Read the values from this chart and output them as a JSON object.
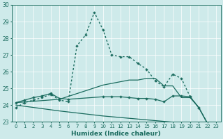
{
  "xlabel": "Humidex (Indice chaleur)",
  "ylabel": "",
  "xlim": [
    -0.5,
    23.5
  ],
  "ylim": [
    23,
    30
  ],
  "yticks": [
    23,
    24,
    25,
    26,
    27,
    28,
    29,
    30
  ],
  "xticks": [
    0,
    1,
    2,
    3,
    4,
    5,
    6,
    7,
    8,
    9,
    10,
    11,
    12,
    13,
    14,
    15,
    16,
    17,
    18,
    19,
    20,
    21,
    22,
    23
  ],
  "bg_color": "#ceeaea",
  "line_color": "#1a6b5e",
  "lines": [
    {
      "x": [
        0,
        1,
        2,
        3,
        4,
        5,
        6,
        7,
        8,
        9,
        10,
        11,
        12,
        13,
        14,
        15,
        16,
        17,
        18,
        19,
        20,
        21,
        22,
        23
      ],
      "y": [
        23.85,
        24.15,
        24.3,
        24.45,
        24.65,
        24.3,
        24.2,
        27.55,
        28.2,
        29.55,
        28.5,
        27.0,
        26.9,
        26.9,
        26.5,
        26.15,
        25.45,
        25.1,
        25.85,
        25.6,
        24.5,
        23.85,
        22.9,
        22.75
      ],
      "style": "dotted",
      "marker": "P",
      "markersize": 2.2,
      "lw": 1.0
    },
    {
      "x": [
        0,
        5,
        10,
        11,
        12,
        13,
        14,
        15,
        16,
        17,
        18,
        19,
        20,
        21,
        22,
        23
      ],
      "y": [
        24.15,
        24.35,
        25.2,
        25.3,
        25.4,
        25.5,
        25.5,
        25.6,
        25.6,
        25.15,
        25.15,
        24.45,
        24.45,
        23.85,
        22.9,
        22.75
      ],
      "style": "solid",
      "marker": null,
      "markersize": 0,
      "lw": 0.9
    },
    {
      "x": [
        0,
        5,
        10,
        23
      ],
      "y": [
        24.0,
        23.65,
        23.35,
        22.75
      ],
      "style": "solid",
      "marker": null,
      "markersize": 0,
      "lw": 0.9
    },
    {
      "x": [
        0,
        1,
        2,
        3,
        4,
        5,
        6,
        10,
        11,
        12,
        13,
        14,
        15,
        16,
        17,
        18,
        19,
        20,
        21,
        22,
        23
      ],
      "y": [
        24.15,
        24.3,
        24.45,
        24.55,
        24.7,
        24.4,
        24.35,
        24.5,
        24.5,
        24.5,
        24.45,
        24.4,
        24.4,
        24.35,
        24.2,
        24.55,
        24.55,
        24.5,
        23.85,
        22.9,
        22.75
      ],
      "style": "solid",
      "marker": "P",
      "markersize": 2.2,
      "lw": 0.9
    }
  ]
}
